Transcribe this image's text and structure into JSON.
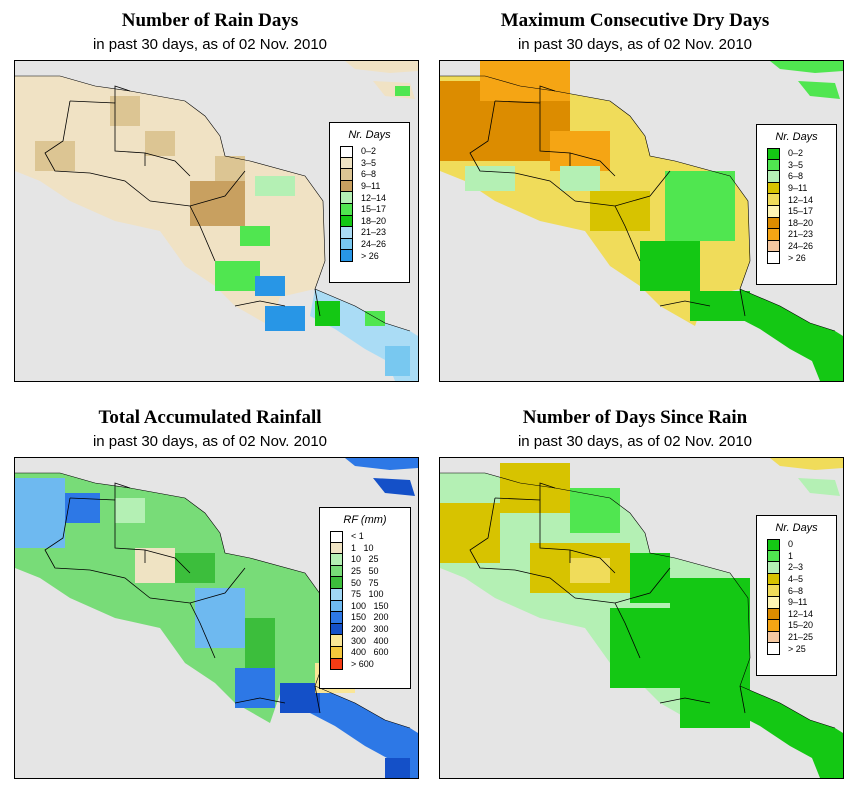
{
  "panels": [
    {
      "title": "Number of Rain Days",
      "subtitle": "in past 30 days, as of  02 Nov. 2010",
      "legend": {
        "title": "Nr. Days",
        "items": [
          {
            "label": "0–2",
            "color": "#ffffff"
          },
          {
            "label": "3–5",
            "color": "#efe3c3"
          },
          {
            "label": "6–8",
            "color": "#dcc593"
          },
          {
            "label": "9–11",
            "color": "#c8a060"
          },
          {
            "label": "12–14",
            "color": "#b4f0b4"
          },
          {
            "label": "15–17",
            "color": "#50e650"
          },
          {
            "label": "18–20",
            "color": "#14c814"
          },
          {
            "label": "21–23",
            "color": "#aadcf5"
          },
          {
            "label": "24–26",
            "color": "#78c8f0"
          },
          {
            "label": "> 26",
            "color": "#2896e6"
          }
        ]
      }
    },
    {
      "title": "Maximum Consecutive Dry Days",
      "subtitle": "in past 30 days, as of  02 Nov. 2010",
      "legend": {
        "title": "Nr. Days",
        "items": [
          {
            "label": "0–2",
            "color": "#14c814"
          },
          {
            "label": "3–5",
            "color": "#50e650"
          },
          {
            "label": "6–8",
            "color": "#b4f0b4"
          },
          {
            "label": "9–11",
            "color": "#d7c300"
          },
          {
            "label": "12–14",
            "color": "#f0dc5a"
          },
          {
            "label": "15–17",
            "color": "#fff5b4"
          },
          {
            "label": "18–20",
            "color": "#dc8c00"
          },
          {
            "label": "21–23",
            "color": "#f5a514"
          },
          {
            "label": "24–26",
            "color": "#f5c8a0"
          },
          {
            "label": "> 26",
            "color": "#ffffff"
          }
        ]
      }
    },
    {
      "title": "Total Accumulated Rainfall",
      "subtitle": "in past 30 days, as of  02 Nov. 2010",
      "legend": {
        "title": "RF (mm)",
        "items": [
          {
            "label": "< 1",
            "color": "#ffffff"
          },
          {
            "label": "1   10",
            "color": "#efe3c3"
          },
          {
            "label": "10   25",
            "color": "#b4f0b4"
          },
          {
            "label": "25   50",
            "color": "#78dc78"
          },
          {
            "label": "50   75",
            "color": "#3cbe3c"
          },
          {
            "label": "75   100",
            "color": "#a0d7f5"
          },
          {
            "label": "100   150",
            "color": "#6eb9f0"
          },
          {
            "label": "150   200",
            "color": "#2d78e6"
          },
          {
            "label": "200   300",
            "color": "#1450c8"
          },
          {
            "label": "300   400",
            "color": "#fae696"
          },
          {
            "label": "400   600",
            "color": "#f5c83c"
          },
          {
            "label": "> 600",
            "color": "#f53c14"
          }
        ]
      }
    },
    {
      "title": "Number of Days Since Rain",
      "subtitle": "in past 30 days, as of  02 Nov. 2010",
      "legend": {
        "title": "Nr. Days",
        "items": [
          {
            "label": "0",
            "color": "#14c814"
          },
          {
            "label": "1",
            "color": "#50e650"
          },
          {
            "label": "2–3",
            "color": "#b4f0b4"
          },
          {
            "label": "4–5",
            "color": "#d7c300"
          },
          {
            "label": "6–8",
            "color": "#f0dc5a"
          },
          {
            "label": "9–11",
            "color": "#fff5b4"
          },
          {
            "label": "12–14",
            "color": "#dc8c00"
          },
          {
            "label": "15–20",
            "color": "#f5a514"
          },
          {
            "label": "21–25",
            "color": "#f5c8a0"
          },
          {
            "label": "> 25",
            "color": "#ffffff"
          }
        ]
      }
    }
  ]
}
